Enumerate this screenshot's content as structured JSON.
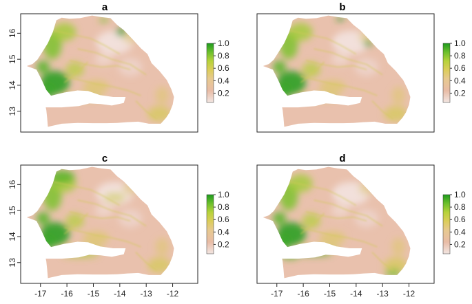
{
  "panels": [
    {
      "id": "a",
      "title": "a",
      "variant": 0,
      "show_y_ticks": true,
      "show_x_ticks": false
    },
    {
      "id": "b",
      "title": "b",
      "variant": 1,
      "show_y_ticks": false,
      "show_x_ticks": false
    },
    {
      "id": "c",
      "title": "c",
      "variant": 2,
      "show_y_ticks": true,
      "show_x_ticks": true
    },
    {
      "id": "d",
      "title": "d",
      "variant": 3,
      "show_y_ticks": false,
      "show_x_ticks": true
    }
  ],
  "x_ticks": [
    "-17",
    "-16",
    "-15",
    "-14",
    "-13",
    "-12"
  ],
  "x_tick_values": [
    -17,
    -16,
    -15,
    -14,
    -13,
    -12
  ],
  "y_ticks": [
    "13",
    "14",
    "15",
    "16"
  ],
  "y_tick_values": [
    13,
    14,
    15,
    16
  ],
  "x_range": [
    -17.75,
    -11.05
  ],
  "y_range": [
    12.2,
    16.75
  ],
  "legend": {
    "labels": [
      "1.0",
      "0.8",
      "0.6",
      "0.4",
      "0.2"
    ],
    "values": [
      1.0,
      0.8,
      0.6,
      0.4,
      0.2
    ],
    "range": [
      0.05,
      1.0
    ],
    "colors": [
      "#f2e6e2",
      "#e8bca6",
      "#e7c98f",
      "#dccd5a",
      "#b7d23a",
      "#6cbf2c",
      "#1e9b1e"
    ]
  }
}
